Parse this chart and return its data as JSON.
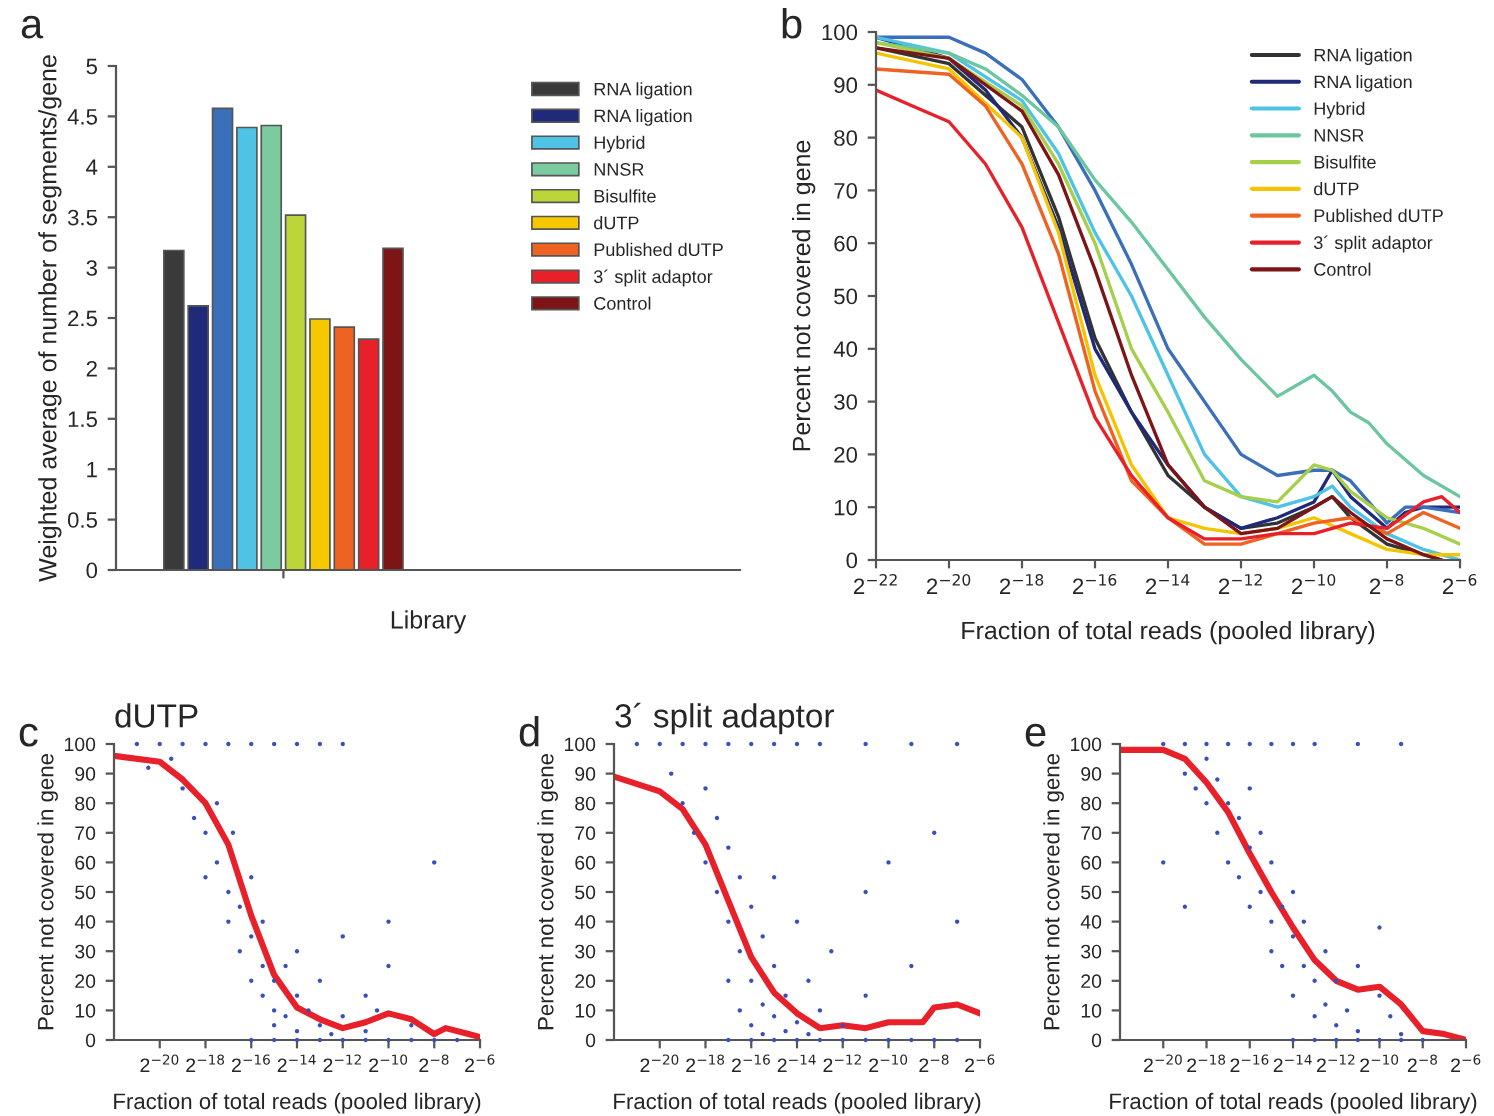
{
  "chart_data": [
    {
      "type": "bar",
      "xlabel": "Library",
      "ylabel": "Weighted average of number of segments/gene",
      "annotations": [
        "a"
      ],
      "categories": [
        null
      ],
      "ylim": [
        0,
        5
      ],
      "yticks": [
        0,
        0.5,
        1,
        1.5,
        2,
        2.5,
        3,
        3.5,
        4,
        4.5,
        5
      ],
      "legend": "top right",
      "grid": false,
      "series": [
        {
          "name": "RNA ligation",
          "color": "#3a3a3a",
          "values": [
            3.17
          ]
        },
        {
          "name": "RNA ligation",
          "color": "#1f2a7a",
          "values": [
            2.62
          ]
        },
        {
          "color": "#3a6fba",
          "values": [
            4.58
          ]
        },
        {
          "name": "Hybrid",
          "color": "#4fc3e6",
          "values": [
            4.39
          ]
        },
        {
          "name": "NNSR",
          "color": "#7ccaa0",
          "values": [
            4.41
          ]
        },
        {
          "name": "Bisulfite",
          "color": "#bcd63a",
          "values": [
            3.52
          ]
        },
        {
          "name": "dUTP",
          "color": "#f5c800",
          "values": [
            2.49
          ]
        },
        {
          "name": "Published dUTP",
          "color": "#ef6322",
          "values": [
            2.41
          ]
        },
        {
          "name": "3´ split adaptor",
          "color": "#e8202a",
          "values": [
            2.29
          ]
        },
        {
          "name": "Control",
          "color": "#7d1416",
          "values": [
            3.19
          ]
        }
      ]
    },
    {
      "type": "line",
      "xlabel": "Fraction of total reads (pooled library)",
      "ylabel": "Percent not covered in gene",
      "annotations": [
        "b"
      ],
      "log": "x",
      "xlim": [
        2.384185791015625e-07,
        0.015625
      ],
      "ylim": [
        0,
        100
      ],
      "xticks": [
        {
          "value": 2.384185791015625e-07,
          "label": "2$^{−22}$"
        },
        {
          "value": 9.5367431640625e-07,
          "label": "2$^{−20}$"
        },
        {
          "value": 3.814697265625e-06,
          "label": "2$^{−18}$"
        },
        {
          "value": 1.52587890625e-05,
          "label": "2$^{−16}$"
        },
        {
          "value": 6.103515625e-05,
          "label": "2$^{−14}$"
        },
        {
          "value": 0.000244140625,
          "label": "2$^{−12}$"
        },
        {
          "value": 0.0009765625,
          "label": "2$^{−10}$"
        },
        {
          "value": 0.00390625,
          "label": "2$^{−8}$"
        },
        {
          "value": 0.015625,
          "label": "2$^{−6}$"
        }
      ],
      "yticks": [
        0,
        10,
        20,
        30,
        40,
        50,
        60,
        70,
        80,
        90,
        100
      ],
      "legend": "top right",
      "grid": false,
      "marker": "none",
      "line_style": "solid",
      "series": [
        {
          "name": "RNA ligation",
          "color": "#333333",
          "x": [
            2.385e-07,
            9.537e-07,
            3.815e-06,
            7.629e-06,
            1.526e-05,
            3.052e-05,
            6.104e-05,
            0.0001221,
            0.0002441,
            0.0004883,
            0.0009766,
            0.001381,
            0.001953,
            0.003906,
            0.007813,
            0.01105
          ],
          "values": [
            97,
            94,
            82,
            65,
            42,
            28,
            16,
            10,
            6,
            7,
            10,
            12,
            8,
            3,
            1,
            0
          ]
        },
        {
          "name": "RNA ligation",
          "color": "#1f2a7a",
          "x": [
            2.385e-07,
            9.537e-07,
            1.907e-06,
            3.815e-06,
            7.629e-06,
            1.526e-05,
            3.052e-05,
            6.104e-05,
            0.0001221,
            0.0002441,
            0.0004883,
            0.0009766,
            0.001381,
            0.001953,
            0.003906,
            0.005524,
            0.007813,
            0.01562
          ],
          "values": [
            99,
            95,
            89,
            80,
            63,
            40,
            28,
            18,
            10,
            6,
            8,
            11,
            17,
            12,
            6,
            9,
            10,
            10
          ]
        },
        {
          "color": "#3a6fba",
          "x": [
            2.385e-07,
            9.537e-07,
            1.907e-06,
            3.815e-06,
            7.629e-06,
            1.526e-05,
            3.052e-05,
            6.104e-05,
            0.0001221,
            0.0002441,
            0.0004883,
            0.0009766,
            0.001381,
            0.001953,
            0.003906,
            0.005524,
            0.007813,
            0.01562
          ],
          "values": [
            99,
            99,
            96,
            91,
            82,
            70,
            56,
            40,
            30,
            20,
            16,
            17,
            17,
            15,
            7,
            10,
            10,
            9
          ]
        },
        {
          "name": "Hybrid",
          "color": "#4fc3e6",
          "x": [
            2.385e-07,
            9.537e-07,
            3.815e-06,
            7.629e-06,
            1.526e-05,
            3.052e-05,
            6.104e-05,
            0.0001221,
            0.0002441,
            0.0004883,
            0.0009766,
            0.001381,
            0.001953,
            0.003906,
            0.007813,
            0.01562
          ],
          "values": [
            99,
            96,
            87,
            77,
            62,
            50,
            35,
            20,
            12,
            10,
            12,
            14,
            10,
            5,
            2,
            0
          ]
        },
        {
          "name": "NNSR",
          "color": "#6cc6a0",
          "x": [
            2.385e-07,
            9.537e-07,
            1.907e-06,
            3.815e-06,
            7.629e-06,
            1.526e-05,
            3.052e-05,
            6.104e-05,
            0.0001221,
            0.0002441,
            0.0004883,
            0.0006905,
            0.0009766,
            0.001381,
            0.001953,
            0.002762,
            0.003906,
            0.007813,
            0.01562
          ],
          "values": [
            98,
            96,
            93,
            88,
            82,
            72,
            64,
            55,
            46,
            38,
            31,
            33,
            35,
            32,
            28,
            26,
            22,
            16,
            12
          ]
        },
        {
          "name": "Bisulfite",
          "color": "#a6cf4a",
          "x": [
            2.385e-07,
            9.537e-07,
            3.815e-06,
            7.629e-06,
            1.526e-05,
            3.052e-05,
            6.104e-05,
            0.0001221,
            0.0002441,
            0.0004883,
            0.0009766,
            0.001381,
            0.001953,
            0.003906,
            0.007813,
            0.01562
          ],
          "values": [
            98,
            95,
            86,
            75,
            60,
            40,
            28,
            15,
            12,
            11,
            18,
            17,
            13,
            8,
            6,
            3
          ]
        },
        {
          "name": "dUTP",
          "color": "#f5c400",
          "x": [
            2.385e-07,
            9.537e-07,
            3.815e-06,
            7.629e-06,
            1.526e-05,
            3.052e-05,
            6.104e-05,
            0.0001221,
            0.0002441,
            0.0004883,
            0.0009766,
            0.001953,
            0.003906,
            0.007813,
            0.01562
          ],
          "values": [
            96,
            93,
            80,
            62,
            35,
            18,
            8,
            6,
            5,
            6,
            8,
            5,
            2,
            1,
            1
          ]
        },
        {
          "name": "Published dUTP",
          "color": "#ef6322",
          "x": [
            2.385e-07,
            9.537e-07,
            1.907e-06,
            3.815e-06,
            7.629e-06,
            1.526e-05,
            3.052e-05,
            6.104e-05,
            0.0001221,
            0.0002441,
            0.0004883,
            0.0009766,
            0.001953,
            0.003906,
            0.007813,
            0.01562
          ],
          "values": [
            93,
            92,
            86,
            75,
            58,
            32,
            15,
            8,
            3,
            3,
            5,
            7,
            8,
            5,
            9,
            6
          ]
        },
        {
          "name": "3´ split adaptor",
          "color": "#e8202a",
          "x": [
            2.385e-07,
            4.768e-07,
            9.537e-07,
            1.907e-06,
            3.815e-06,
            7.629e-06,
            1.526e-05,
            3.052e-05,
            6.104e-05,
            0.0001221,
            0.0002441,
            0.0004883,
            0.0009766,
            0.001953,
            0.003906,
            0.007813,
            0.01105,
            0.01562
          ],
          "values": [
            89,
            86,
            83,
            75,
            63,
            45,
            27,
            16,
            8,
            4,
            4,
            5,
            5,
            7,
            6,
            11,
            12,
            9
          ]
        },
        {
          "name": "Control",
          "color": "#7d1416",
          "x": [
            2.385e-07,
            9.537e-07,
            3.815e-06,
            7.629e-06,
            1.526e-05,
            3.052e-05,
            6.104e-05,
            0.0001221,
            0.0002441,
            0.0004883,
            0.0009766,
            0.001381,
            0.001953,
            0.003906,
            0.007813,
            0.01105
          ],
          "values": [
            97,
            95,
            85,
            73,
            55,
            35,
            18,
            10,
            5,
            6,
            10,
            12,
            9,
            4,
            1,
            0
          ]
        }
      ]
    },
    {
      "type": "scatter",
      "title": "dUTP",
      "xlabel": "Fraction of total reads (pooled library)",
      "ylabel": "Percent not covered in gene",
      "annotations": [
        "c"
      ],
      "log": "x",
      "xlim": [
        2.384185791015625e-07,
        0.015625
      ],
      "ylim": [
        0,
        100
      ],
      "xticks": [
        {
          "value": 9.5367431640625e-07,
          "label": "2$^{−20}$"
        },
        {
          "value": 3.814697265625e-06,
          "label": "2$^{−18}$"
        },
        {
          "value": 1.52587890625e-05,
          "label": "2$^{−16}$"
        },
        {
          "value": 6.103515625e-05,
          "label": "2$^{−14}$"
        },
        {
          "value": 0.000244140625,
          "label": "2$^{−12}$"
        },
        {
          "value": 0.0009765625,
          "label": "2$^{−10}$"
        },
        {
          "value": 0.00390625,
          "label": "2$^{−8}$"
        },
        {
          "value": 0.015625,
          "label": "2$^{−6}$"
        }
      ],
      "yticks": [
        0,
        10,
        20,
        30,
        40,
        50,
        60,
        70,
        80,
        90,
        100
      ],
      "grid": false,
      "series": [
        {
          "type": "scatter",
          "color": "#3a4fb8",
          "x": [
            4.768e-07,
            9.537e-07,
            1.907e-06,
            3.815e-06,
            7.629e-06,
            1.526e-05,
            3.052e-05,
            6.104e-05,
            0.0001221,
            0.0002441,
            6.744e-07,
            1.349e-06,
            1.907e-06,
            2.697e-06,
            3.815e-06,
            3.815e-06,
            5.394e-06,
            5.394e-06,
            7.629e-06,
            7.629e-06,
            8.764e-06,
            1.079e-05,
            1.079e-05,
            1.526e-05,
            1.526e-05,
            1.526e-05,
            2.158e-05,
            2.158e-05,
            2.158e-05,
            3.052e-05,
            3.052e-05,
            3.052e-05,
            4.316e-05,
            4.316e-05,
            6.104e-05,
            6.104e-05,
            6.104e-05,
            8.632e-05,
            0.0001221,
            0.0001221,
            0.0001726,
            0.0002441,
            0.0002441,
            0.0004883,
            0.0004883,
            0.0009766,
            0.0009766,
            0.0006905,
            0.001953,
            0.003906,
            1.526e-05,
            3.052e-05,
            6.104e-05,
            0.0001221,
            0.0002441,
            0.0004883,
            0.0009766,
            0.001953,
            0.003906,
            0.007813
          ],
          "values": [
            100,
            100,
            100,
            100,
            100,
            100,
            100,
            100,
            100,
            100,
            92,
            95,
            85,
            75,
            70,
            55,
            80,
            60,
            50,
            40,
            70,
            45,
            30,
            55,
            35,
            20,
            25,
            15,
            40,
            10,
            20,
            5,
            8,
            25,
            3,
            15,
            30,
            10,
            5,
            20,
            2,
            8,
            35,
            15,
            3,
            25,
            40,
            10,
            5,
            60,
            0,
            0,
            0,
            0,
            0,
            0,
            0,
            0,
            0,
            0
          ]
        },
        {
          "type": "line",
          "color": "#e8202a",
          "x": [
            2.385e-07,
            9.537e-07,
            1.907e-06,
            3.815e-06,
            7.629e-06,
            1.526e-05,
            3.052e-05,
            6.104e-05,
            0.0001221,
            0.0002441,
            0.0004883,
            0.0009766,
            0.001953,
            0.003906,
            0.005524,
            0.01105,
            0.01562
          ],
          "values": [
            96,
            94,
            88,
            80,
            66,
            42,
            22,
            11,
            7,
            4,
            6,
            9,
            7,
            2,
            4,
            2,
            1
          ]
        }
      ]
    },
    {
      "type": "scatter",
      "title": "3´ split adaptor",
      "xlabel": "Fraction of total reads (pooled library)",
      "ylabel": "Percent not covered in gene",
      "annotations": [
        "d"
      ],
      "log": "x",
      "xlim": [
        2.384185791015625e-07,
        0.015625
      ],
      "ylim": [
        0,
        100
      ],
      "xticks": [
        {
          "value": 9.5367431640625e-07,
          "label": "2$^{−20}$"
        },
        {
          "value": 3.814697265625e-06,
          "label": "2$^{−18}$"
        },
        {
          "value": 1.52587890625e-05,
          "label": "2$^{−16}$"
        },
        {
          "value": 6.103515625e-05,
          "label": "2$^{−14}$"
        },
        {
          "value": 0.000244140625,
          "label": "2$^{−12}$"
        },
        {
          "value": 0.0009765625,
          "label": "2$^{−10}$"
        },
        {
          "value": 0.00390625,
          "label": "2$^{−8}$"
        },
        {
          "value": 0.015625,
          "label": "2$^{−6}$"
        }
      ],
      "yticks": [
        0,
        10,
        20,
        30,
        40,
        50,
        60,
        70,
        80,
        90,
        100
      ],
      "grid": false,
      "series": [
        {
          "type": "scatter",
          "color": "#3a4fb8",
          "x": [
            4.768e-07,
            9.537e-07,
            1.907e-06,
            3.815e-06,
            7.629e-06,
            1.526e-05,
            3.052e-05,
            6.104e-05,
            0.0001221,
            0.0004883,
            0.001953,
            0.007813,
            1.349e-06,
            1.907e-06,
            2.697e-06,
            3.815e-06,
            3.815e-06,
            5.394e-06,
            5.394e-06,
            7.629e-06,
            7.629e-06,
            7.629e-06,
            1.079e-05,
            1.079e-05,
            1.079e-05,
            1.526e-05,
            1.526e-05,
            1.526e-05,
            2.158e-05,
            2.158e-05,
            2.158e-05,
            3.052e-05,
            3.052e-05,
            3.052e-05,
            4.316e-05,
            4.316e-05,
            6.104e-05,
            6.104e-05,
            8.632e-05,
            8.632e-05,
            0.0001221,
            0.0001726,
            0.0002441,
            0.0004883,
            0.0004883,
            0.0009766,
            0.001953,
            0.003906,
            0.007813,
            7.629e-06,
            1.526e-05,
            3.052e-05,
            6.104e-05,
            0.0001221,
            0.0002441,
            0.0004883,
            0.0009766,
            0.001953,
            0.003906,
            0.007813
          ],
          "values": [
            100,
            100,
            100,
            100,
            100,
            100,
            100,
            100,
            100,
            100,
            100,
            100,
            90,
            80,
            70,
            85,
            60,
            75,
            50,
            65,
            40,
            20,
            55,
            30,
            10,
            45,
            20,
            5,
            35,
            12,
            2,
            25,
            8,
            55,
            15,
            3,
            40,
            6,
            20,
            2,
            10,
            30,
            5,
            15,
            50,
            60,
            25,
            70,
            40,
            0,
            0,
            0,
            0,
            0,
            0,
            0,
            0,
            0,
            0,
            0
          ]
        },
        {
          "type": "line",
          "color": "#e8202a",
          "x": [
            2.385e-07,
            9.537e-07,
            1.907e-06,
            3.815e-06,
            7.629e-06,
            1.526e-05,
            3.052e-05,
            6.104e-05,
            0.0001221,
            0.0002441,
            0.0004883,
            0.0009766,
            0.001953,
            0.002762,
            0.003906,
            0.007813,
            0.01562
          ],
          "values": [
            89,
            84,
            78,
            66,
            47,
            28,
            16,
            9,
            4,
            5,
            4,
            6,
            6,
            6,
            11,
            12,
            9
          ]
        }
      ]
    },
    {
      "type": "scatter",
      "xlabel": "Fraction of total reads (pooled library)",
      "ylabel": "Percent not covered in gene",
      "annotations": [
        "e"
      ],
      "log": "x",
      "xlim": [
        2.384185791015625e-07,
        0.015625
      ],
      "ylim": [
        0,
        100
      ],
      "xticks": [
        {
          "value": 9.5367431640625e-07,
          "label": "2$^{−20}$"
        },
        {
          "value": 3.814697265625e-06,
          "label": "2$^{−18}$"
        },
        {
          "value": 1.52587890625e-05,
          "label": "2$^{−16}$"
        },
        {
          "value": 6.103515625e-05,
          "label": "2$^{−14}$"
        },
        {
          "value": 0.000244140625,
          "label": "2$^{−12}$"
        },
        {
          "value": 0.0009765625,
          "label": "2$^{−10}$"
        },
        {
          "value": 0.00390625,
          "label": "2$^{−8}$"
        },
        {
          "value": 0.015625,
          "label": "2$^{−6}$"
        }
      ],
      "yticks": [
        0,
        10,
        20,
        30,
        40,
        50,
        60,
        70,
        80,
        90,
        100
      ],
      "grid": false,
      "series": [
        {
          "type": "scatter",
          "color": "#3a4fb8",
          "x": [
            9.537e-07,
            1.907e-06,
            3.815e-06,
            7.629e-06,
            1.526e-05,
            3.052e-05,
            6.104e-05,
            0.0001221,
            0.0004883,
            0.001953,
            1.907e-06,
            2.697e-06,
            3.815e-06,
            3.815e-06,
            5.394e-06,
            5.394e-06,
            7.629e-06,
            7.629e-06,
            1.079e-05,
            1.079e-05,
            1.526e-05,
            1.526e-05,
            1.526e-05,
            2.158e-05,
            2.158e-05,
            3.052e-05,
            3.052e-05,
            3.052e-05,
            4.316e-05,
            4.316e-05,
            6.104e-05,
            6.104e-05,
            6.104e-05,
            8.632e-05,
            8.632e-05,
            0.0001221,
            0.0001221,
            0.0001726,
            0.0001726,
            0.0002441,
            0.0002441,
            0.0003453,
            0.0004883,
            0.0004883,
            0.0009766,
            0.0009766,
            0.001381,
            0.001953,
            9.537e-07,
            1.907e-06,
            6.104e-05,
            0.0001221,
            0.0002441,
            0.0004883,
            0.0009766,
            0.001953,
            0.003906
          ],
          "values": [
            100,
            100,
            100,
            100,
            100,
            100,
            100,
            100,
            100,
            100,
            90,
            85,
            80,
            95,
            70,
            88,
            60,
            80,
            75,
            55,
            65,
            45,
            85,
            50,
            70,
            40,
            60,
            30,
            45,
            25,
            35,
            50,
            15,
            25,
            40,
            20,
            8,
            12,
            30,
            5,
            20,
            10,
            3,
            25,
            15,
            38,
            8,
            2,
            60,
            45,
            0,
            0,
            0,
            0,
            0,
            0,
            0
          ]
        },
        {
          "type": "line",
          "color": "#e8202a",
          "x": [
            2.385e-07,
            9.537e-07,
            1.907e-06,
            3.815e-06,
            7.629e-06,
            1.526e-05,
            3.052e-05,
            6.104e-05,
            0.0001221,
            0.0002441,
            0.0004883,
            0.0009766,
            0.001953,
            0.003906,
            0.007813,
            0.01562
          ],
          "values": [
            98,
            98,
            95,
            87,
            77,
            63,
            50,
            38,
            27,
            20,
            17,
            18,
            12,
            3,
            2,
            0
          ]
        }
      ]
    }
  ]
}
